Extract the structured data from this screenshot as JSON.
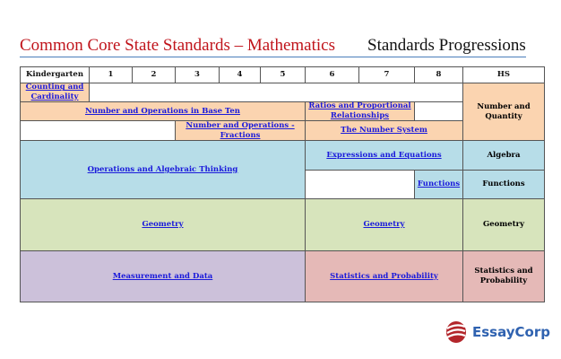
{
  "header": {
    "title": "Common Core State Standards – Mathematics",
    "subtitle": "Standards Progressions"
  },
  "colors": {
    "orange": "#fbd4b0",
    "blue": "#b7dde8",
    "green": "#d7e4bc",
    "purple": "#ccc1da",
    "pink": "#e5b9b7",
    "link": "#1a1adb"
  },
  "grades": [
    "Kindergarten",
    "1",
    "2",
    "3",
    "4",
    "5",
    "6",
    "7",
    "8",
    "HS"
  ],
  "domains": {
    "cc": "Counting and Cardinality",
    "nbt": "Number and Operations in Base Ten",
    "rp": "Ratios and Proportional Relationships",
    "nf": "Number and Operations - Fractions",
    "ns": "The Number System",
    "oa": "Operations and Algebraic Thinking",
    "ee": "Expressions and Equations",
    "f": "Functions",
    "g1": "Geometry",
    "g2": "Geometry",
    "md": "Measurement and Data",
    "sp": "Statistics and Probability"
  },
  "hs": {
    "nq": "Number and Quantity",
    "alg": "Algebra",
    "fun": "Functions",
    "geo": "Geometry",
    "sp": "Statistics and Probability"
  },
  "logo": {
    "text": "EssayCorp",
    "icon": "essaycorp-logo-icon"
  }
}
